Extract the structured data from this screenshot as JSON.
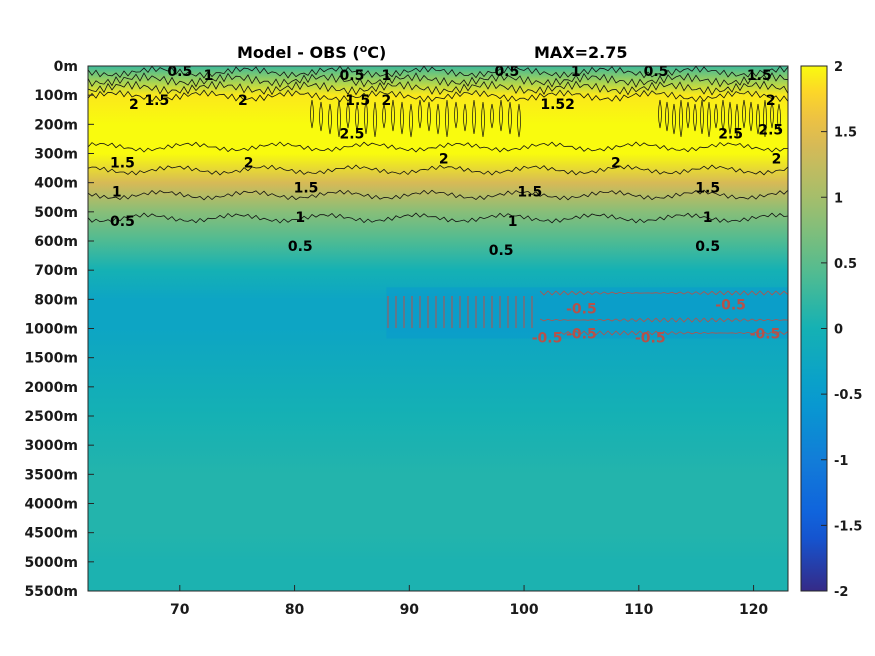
{
  "chart_data": {
    "type": "heatmap",
    "title": "Model - OBS (°C)",
    "title_main": "Model - OBS (",
    "title_sup": "o",
    "title_unit": "C)",
    "max_label": "MAX=2.75",
    "x_ticks": [
      70,
      80,
      90,
      100,
      110,
      120
    ],
    "xlim": [
      62,
      123
    ],
    "y_tick_labels": [
      "0m",
      "100m",
      "200m",
      "300m",
      "400m",
      "500m",
      "600m",
      "700m",
      "800m",
      "1000m",
      "1500m",
      "2000m",
      "2500m",
      "3000m",
      "3500m",
      "4000m",
      "4500m",
      "5000m",
      "5500m"
    ],
    "colorbar": {
      "ticks": [
        "2",
        "1.5",
        "1",
        "0.5",
        "0",
        "-0.5",
        "-1",
        "-1.5",
        "-2"
      ],
      "range": [
        -2,
        2
      ],
      "colormap": "parula"
    },
    "depth_profile": {
      "depth_labels": [
        "0m",
        "100m",
        "200m",
        "300m",
        "400m",
        "500m",
        "600m",
        "700m",
        "800m",
        "1000m",
        "1500m",
        "2000m",
        "2500m",
        "3000m",
        "3500m",
        "4000m",
        "4500m",
        "5000m",
        "5500m"
      ],
      "values": [
        0.3,
        1.9,
        2.3,
        2.1,
        1.4,
        0.8,
        0.4,
        0.0,
        -0.3,
        -0.3,
        -0.2,
        -0.1,
        0.0,
        0.05,
        0.1,
        0.1,
        0.1,
        0.05,
        0.05
      ]
    },
    "cold_anomaly": {
      "x_range": [
        88,
        123
      ],
      "depth_labels": [
        "800m",
        "1000m"
      ],
      "value": -0.6
    },
    "contour_labels": [
      {
        "text": "0.5",
        "x": 70,
        "depth": "0m",
        "color": "black"
      },
      {
        "text": "1",
        "x": 72.5,
        "depth": "0m",
        "color": "black"
      },
      {
        "text": "1.5",
        "x": 68,
        "depth": "100m",
        "color": "black"
      },
      {
        "text": "2",
        "x": 66,
        "depth": "100m",
        "color": "black"
      },
      {
        "text": "2",
        "x": 75.5,
        "depth": "100m",
        "color": "black"
      },
      {
        "text": "0.5",
        "x": 85,
        "depth": "0m",
        "color": "black"
      },
      {
        "text": "1.5",
        "x": 85.5,
        "depth": "100m",
        "color": "black"
      },
      {
        "text": "1",
        "x": 88,
        "depth": "0m",
        "color": "black"
      },
      {
        "text": "2",
        "x": 88,
        "depth": "100m",
        "color": "black"
      },
      {
        "text": "2.5",
        "x": 85,
        "depth": "200m",
        "color": "black"
      },
      {
        "text": "0.5",
        "x": 98.5,
        "depth": "0m",
        "color": "black"
      },
      {
        "text": "1.5",
        "x": 102.5,
        "depth": "100m",
        "color": "black"
      },
      {
        "text": "1",
        "x": 104.5,
        "depth": "0m",
        "color": "black"
      },
      {
        "text": "2",
        "x": 104,
        "depth": "100m",
        "color": "black"
      },
      {
        "text": "0.5",
        "x": 111.5,
        "depth": "0m",
        "color": "black"
      },
      {
        "text": "1.5",
        "x": 120.5,
        "depth": "0m",
        "color": "black"
      },
      {
        "text": "2",
        "x": 121.5,
        "depth": "100m",
        "color": "black"
      },
      {
        "text": "2.5",
        "x": 118,
        "depth": "200m",
        "color": "black"
      },
      {
        "text": "2.5",
        "x": 121.5,
        "depth": "200m",
        "color": "black"
      },
      {
        "text": "2",
        "x": 76,
        "depth": "300m",
        "color": "black"
      },
      {
        "text": "2",
        "x": 93,
        "depth": "300m",
        "color": "black"
      },
      {
        "text": "2",
        "x": 108,
        "depth": "300m",
        "color": "black"
      },
      {
        "text": "2",
        "x": 122,
        "depth": "300m",
        "color": "black"
      },
      {
        "text": "1.5",
        "x": 65,
        "depth": "300m",
        "color": "black"
      },
      {
        "text": "1.5",
        "x": 81,
        "depth": "400m",
        "color": "black"
      },
      {
        "text": "1.5",
        "x": 100.5,
        "depth": "400m",
        "color": "black"
      },
      {
        "text": "1.5",
        "x": 116,
        "depth": "400m",
        "color": "black"
      },
      {
        "text": "1",
        "x": 64.5,
        "depth": "400m",
        "color": "black"
      },
      {
        "text": "1",
        "x": 80.5,
        "depth": "500m",
        "color": "black"
      },
      {
        "text": "1",
        "x": 99,
        "depth": "500m",
        "color": "black"
      },
      {
        "text": "1",
        "x": 116,
        "depth": "500m",
        "color": "black"
      },
      {
        "text": "0.5",
        "x": 65,
        "depth": "500m",
        "color": "black"
      },
      {
        "text": "0.5",
        "x": 80.5,
        "depth": "600m",
        "color": "black"
      },
      {
        "text": "0.5",
        "x": 98,
        "depth": "600m",
        "color": "black"
      },
      {
        "text": "0.5",
        "x": 116,
        "depth": "600m",
        "color": "black"
      },
      {
        "text": "-0.5",
        "x": 105,
        "depth": "800m",
        "color": "red"
      },
      {
        "text": "-0.5",
        "x": 118,
        "depth": "800m",
        "color": "red"
      },
      {
        "text": "-0.5",
        "x": 102,
        "depth": "1000m",
        "color": "red"
      },
      {
        "text": "-0.5",
        "x": 105,
        "depth": "1000m",
        "color": "red"
      },
      {
        "text": "-0.5",
        "x": 111,
        "depth": "1000m",
        "color": "red"
      },
      {
        "text": "-0.5",
        "x": 121,
        "depth": "1000m",
        "color": "red"
      }
    ]
  }
}
